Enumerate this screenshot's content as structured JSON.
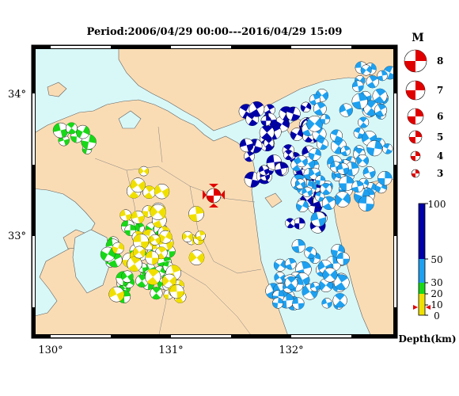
{
  "title": "Period:2006/04/29 00:00---2016/04/29 15:09",
  "colors": {
    "sea": "#d8f8f8",
    "land": "#fadcb4",
    "shallow": "#f0e000",
    "mid": "#18d818",
    "deep": "#1ea0f0",
    "deepest": "#0000a8",
    "event": "#e00000"
  },
  "map": {
    "lon_ticks": [
      "130°",
      "131°",
      "132°"
    ],
    "lat_ticks": [
      "34°",
      "33°"
    ]
  },
  "magnitude_legend": {
    "title": "M",
    "labels": [
      "8",
      "7",
      "6",
      "5",
      "4",
      "3"
    ]
  },
  "depth_scale": {
    "unit_label": "Depth(km)",
    "labels": [
      "100",
      "50",
      "30",
      "20",
      "10",
      "0"
    ]
  }
}
